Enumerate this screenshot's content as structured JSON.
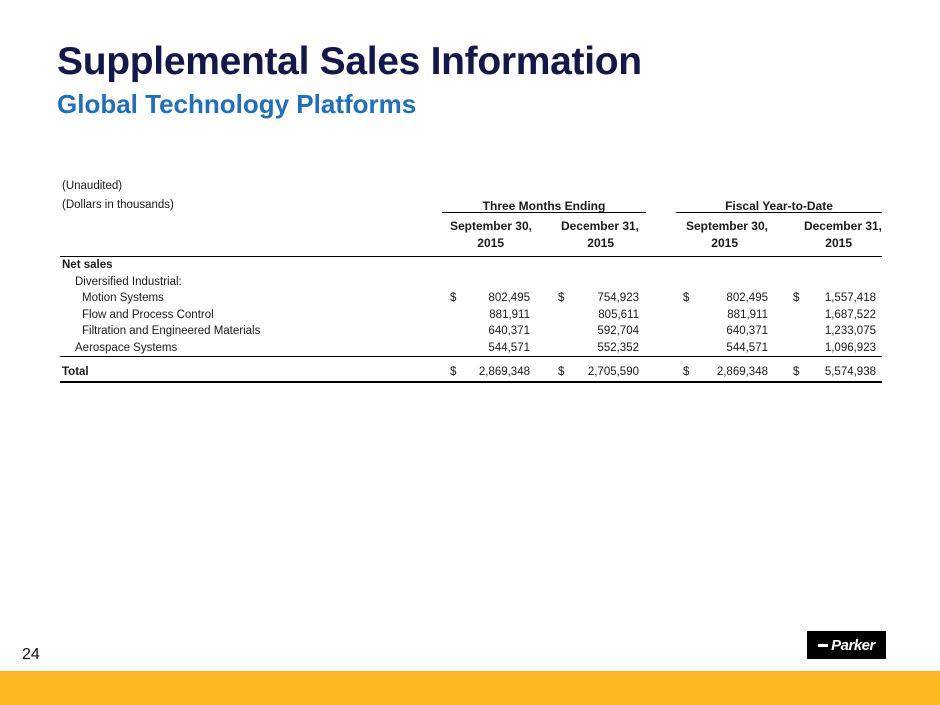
{
  "title": "Supplemental Sales Information",
  "subtitle": "Global Technology Platforms",
  "notes": {
    "unaudited": "(Unaudited)",
    "units": "(Dollars in thousands)"
  },
  "groups": {
    "three_months": "Three Months Ending",
    "ytd": "Fiscal Year-to-Date"
  },
  "columns": [
    {
      "line1": "September 30,",
      "line2": "2015"
    },
    {
      "line1": "December 31,",
      "line2": "2015"
    },
    {
      "line1": "September 30,",
      "line2": "2015"
    },
    {
      "line1": "December 31,",
      "line2": "2015"
    }
  ],
  "section_label": "Net sales",
  "subsection_label": "Diversified Industrial:",
  "rows": [
    {
      "label": "Motion Systems",
      "cur": "$",
      "values": [
        "802,495",
        "754,923",
        "802,495",
        "1,557,418"
      ]
    },
    {
      "label": "Flow and Process Control",
      "cur": "",
      "values": [
        "881,911",
        "805,611",
        "881,911",
        "1,687,522"
      ]
    },
    {
      "label": "Filtration and Engineered Materials",
      "cur": "",
      "values": [
        "640,371",
        "592,704",
        "640,371",
        "1,233,075"
      ]
    },
    {
      "label": "Aerospace Systems",
      "cur": "",
      "values": [
        "544,571",
        "552,352",
        "544,571",
        "1,096,923"
      ]
    }
  ],
  "total": {
    "label": "Total",
    "cur": "$",
    "values": [
      "2,869,348",
      "2,705,590",
      "2,869,348",
      "5,574,938"
    ]
  },
  "page_number": "24",
  "logo_text": "Parker",
  "colors": {
    "title": "#14174a",
    "subtitle": "#1f6fc0",
    "bottom_bar": "#fbb821"
  }
}
